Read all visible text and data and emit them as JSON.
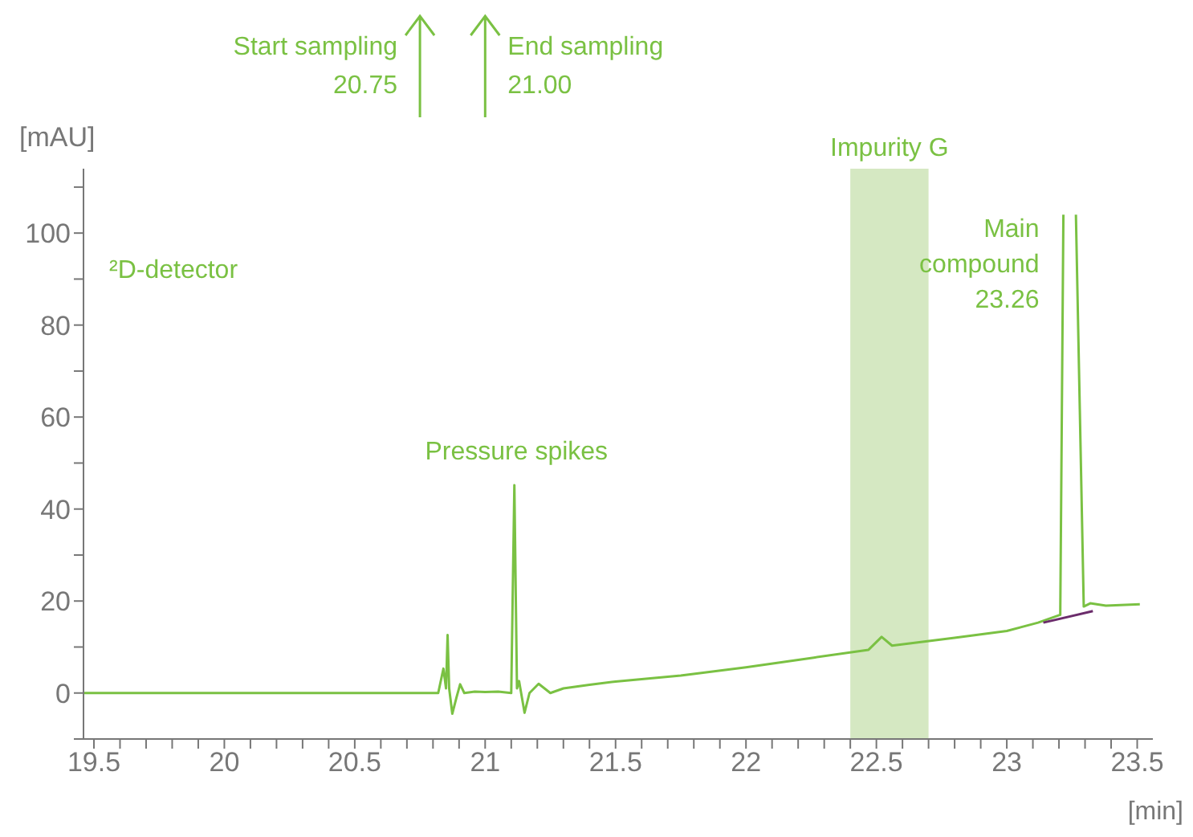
{
  "chart_data": {
    "type": "line",
    "xlabel": "[min]",
    "ylabel": "[mAU]",
    "xlim": [
      19.46,
      23.56
    ],
    "ylim": [
      -10,
      114
    ],
    "xticks": [
      19.5,
      {
        "value": 19.6,
        "label": null
      },
      {
        "value": 19.7,
        "label": null
      },
      {
        "value": 19.8,
        "label": null
      },
      {
        "value": 19.9,
        "label": null
      },
      20,
      {
        "value": 20.1,
        "label": null
      },
      {
        "value": 20.2,
        "label": null
      },
      {
        "value": 20.3,
        "label": null
      },
      {
        "value": 20.4,
        "label": null
      },
      20.5,
      {
        "value": 20.6,
        "label": null
      },
      {
        "value": 20.7,
        "label": null
      },
      {
        "value": 20.8,
        "label": null
      },
      {
        "value": 20.9,
        "label": null
      },
      21,
      {
        "value": 21.1,
        "label": null
      },
      {
        "value": 21.2,
        "label": null
      },
      {
        "value": 21.3,
        "label": null
      },
      {
        "value": 21.4,
        "label": null
      },
      21.5,
      {
        "value": 21.6,
        "label": null
      },
      {
        "value": 21.7,
        "label": null
      },
      {
        "value": 21.8,
        "label": null
      },
      {
        "value": 21.9,
        "label": null
      },
      22,
      {
        "value": 22.1,
        "label": null
      },
      {
        "value": 22.2,
        "label": null
      },
      {
        "value": 22.3,
        "label": null
      },
      {
        "value": 22.4,
        "label": null
      },
      22.5,
      {
        "value": 22.6,
        "label": null
      },
      {
        "value": 22.7,
        "label": null
      },
      {
        "value": 22.8,
        "label": null
      },
      {
        "value": 22.9,
        "label": null
      },
      23,
      {
        "value": 23.1,
        "label": null
      },
      {
        "value": 23.2,
        "label": null
      },
      {
        "value": 23.3,
        "label": null
      },
      {
        "value": 23.4,
        "label": null
      },
      23.5
    ],
    "yticks": [
      {
        "value": -10,
        "label": null
      },
      0,
      {
        "value": 10,
        "label": null
      },
      20,
      {
        "value": 30,
        "label": null
      },
      40,
      {
        "value": 50,
        "label": null
      },
      60,
      {
        "value": 70,
        "label": null
      },
      80,
      {
        "value": 90,
        "label": null
      },
      100,
      {
        "value": 110,
        "label": null
      }
    ],
    "series": [
      {
        "color": "#7ac143",
        "x": [
          19.46,
          19.8,
          20.2,
          20.6,
          20.82,
          20.84,
          20.85,
          20.856,
          20.862,
          20.874,
          20.89,
          20.904,
          20.92,
          20.96,
          21.0,
          21.05,
          21.1,
          21.112,
          21.122,
          21.13,
          21.151,
          21.17,
          21.205,
          21.25,
          21.3,
          21.4,
          21.5,
          21.75,
          22.0,
          22.26,
          22.47,
          22.52,
          22.56,
          22.8,
          23.0,
          23.12,
          23.205,
          23.217,
          23.24,
          23.265,
          23.295,
          23.32,
          23.38,
          23.51
        ],
        "values": [
          0,
          0,
          0,
          0,
          0,
          5.3,
          1,
          12.6,
          1,
          -4.5,
          -1,
          1.9,
          0,
          0.3,
          0.2,
          0.3,
          0,
          45.2,
          1,
          2.6,
          -4.3,
          0,
          2,
          0,
          1,
          1.8,
          2.5,
          3.8,
          5.6,
          7.7,
          9.4,
          12.2,
          10.3,
          12,
          13.5,
          15.3,
          17,
          104,
          null,
          104,
          18.8,
          19.5,
          19,
          19.3
        ]
      },
      {
        "color": "#6b2c6b",
        "x": [
          23.14,
          23.33
        ],
        "values": [
          15.3,
          17.8
        ]
      }
    ],
    "bands": [
      {
        "axis": "x",
        "from": 22.4,
        "to": 22.7,
        "label": "Impurity G",
        "color": "#d5e8c2"
      }
    ],
    "ref_lines": [
      {
        "axis": "x",
        "value": 20.75,
        "label": "Start sampling\n20.75"
      },
      {
        "axis": "x",
        "value": 21.0,
        "label": "End sampling\n21.00"
      }
    ],
    "annotations": [
      "²D-detector",
      {
        "text": "Pressure spikes",
        "x": 21.12,
        "y": 45.2
      },
      {
        "text": "Main\ncompound\n23.26",
        "x": 23.26,
        "y": 104
      }
    ]
  }
}
